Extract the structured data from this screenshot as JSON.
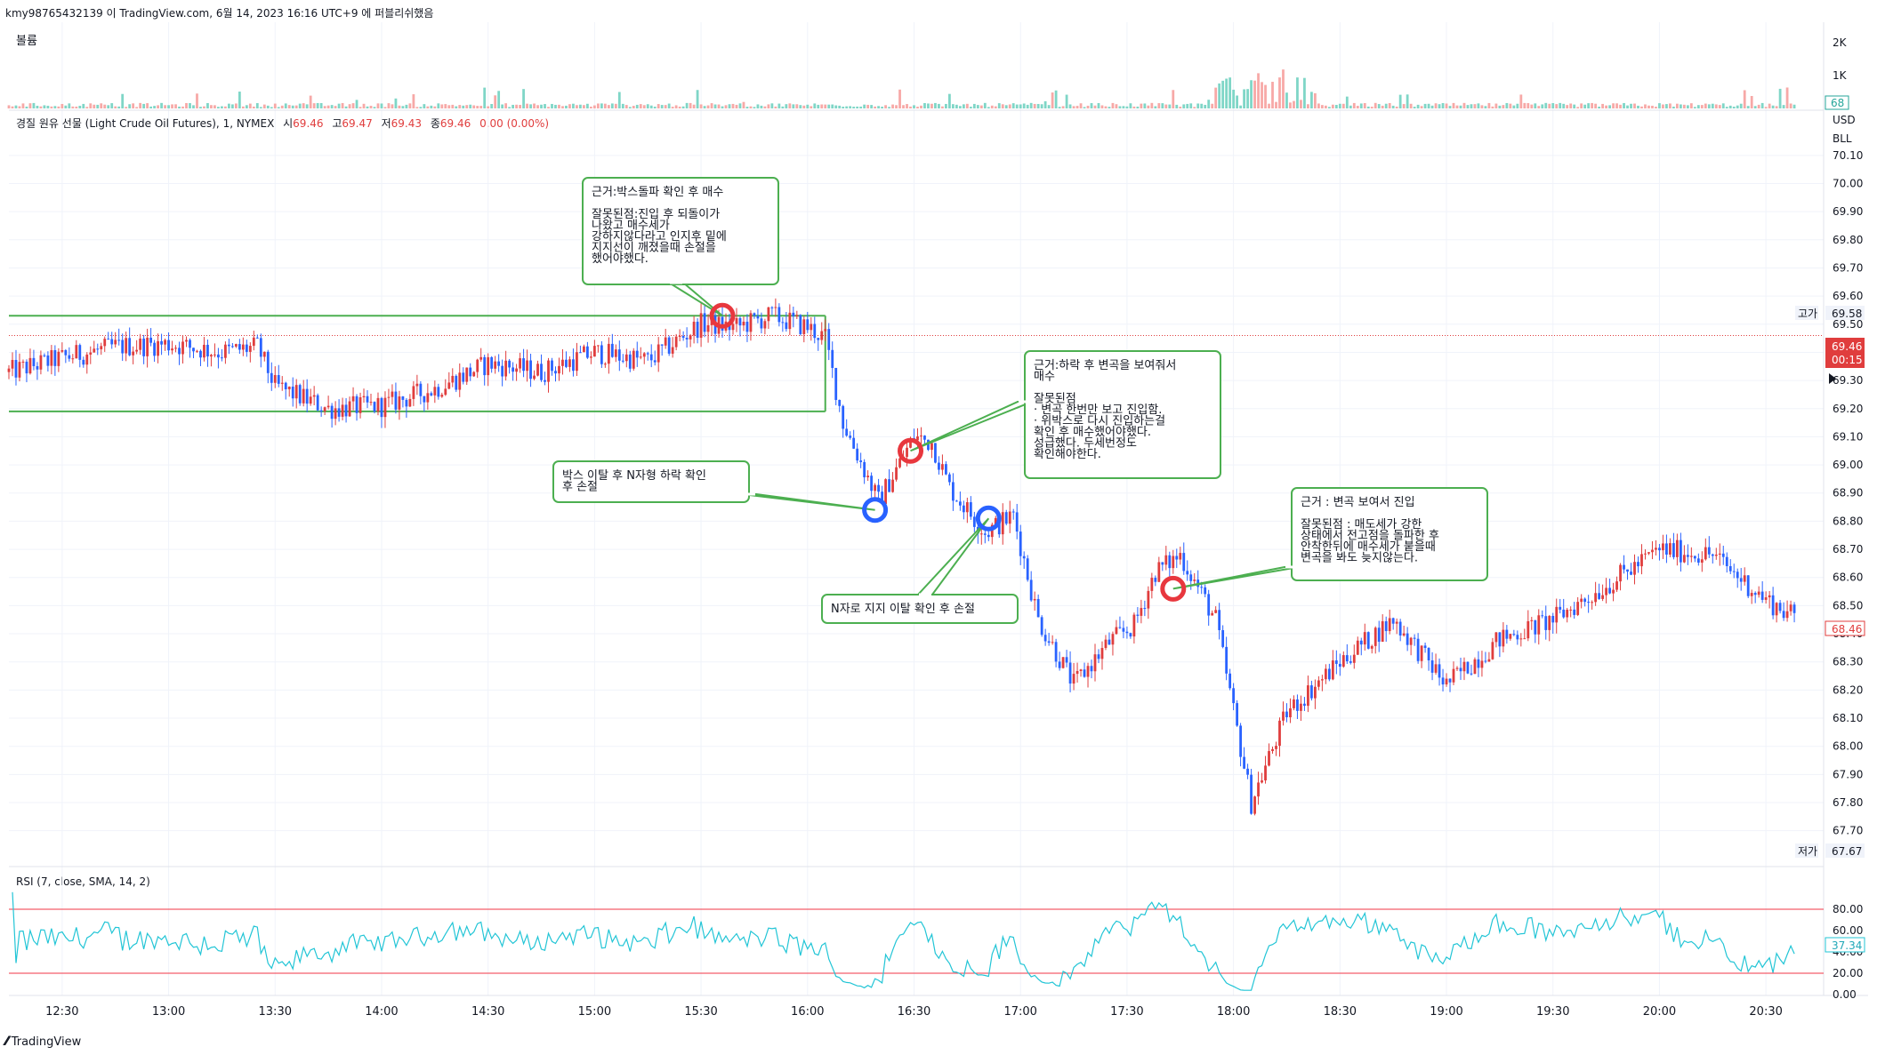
{
  "header": {
    "text": "kmy98765432139 이 TradingView.com, 6월 14, 2023 16:16 UTC+9 에 퍼블리쉬했음"
  },
  "volume_pane": {
    "label": "볼륨",
    "ticks": [
      "2K",
      "1K"
    ],
    "last_value": "68"
  },
  "title_line": {
    "name": "경질 원유 선물 (Light Crude Oil Futures), 1, NYMEX",
    "o_label": "시",
    "o_value": "69.46",
    "h_label": "고",
    "h_value": "69.47",
    "l_label": "저",
    "l_value": "69.43",
    "c_label": "종",
    "c_value": "69.46",
    "change": "0.00 (0.00%)"
  },
  "price_axis": {
    "currency": "USD",
    "unit": "BLL",
    "ticks": [
      "70.10",
      "70.00",
      "69.90",
      "69.80",
      "69.70",
      "69.60",
      "69.50",
      "69.40",
      "69.30",
      "69.20",
      "69.10",
      "69.00",
      "68.90",
      "68.80",
      "68.70",
      "68.60",
      "68.50",
      "68.40",
      "68.30",
      "68.20",
      "68.10",
      "68.00",
      "67.90",
      "67.80",
      "67.70"
    ],
    "high_label": "고가",
    "high_value": "69.58",
    "low_label": "저가",
    "low_value": "67.67",
    "last_price": "69.46",
    "countdown": "00:15",
    "secondary_price": "68.46"
  },
  "rsi_pane": {
    "label": "RSI (7, close, SMA, 14, 2)",
    "ticks": [
      "80.00",
      "60.00",
      "40.00",
      "20.00",
      "0.00"
    ],
    "value": "37.34"
  },
  "time_axis": {
    "ticks": [
      "12:30",
      "13:00",
      "13:30",
      "14:00",
      "14:30",
      "15:00",
      "15:30",
      "16:00",
      "16:30",
      "17:00",
      "17:30",
      "18:00",
      "18:30",
      "19:00",
      "19:30",
      "20:00",
      "20:30"
    ]
  },
  "annotations": [
    {
      "lines": [
        "근거:박스돌파 확인 후 매수",
        "",
        "잘못된점:진입 후 되돌이가",
        "나왔고 매수세가",
        "강하지않다라고 인지후 밑에",
        "지지선이 깨졌을때 손절을",
        "했어야했다."
      ]
    },
    {
      "lines": [
        "박스 이탈 후 N자형 하락 확인",
        "후 손절"
      ]
    },
    {
      "lines": [
        "근거:하락 후 변곡을 보여줘서",
        "매수",
        "",
        "잘못된점",
        "· 변곡 한번만 보고 진입함.",
        "· 위박스로 다시 진입하는걸",
        "확인 후 매수했어야했다.",
        "성급했다. 두세번정도",
        "확인해야한다."
      ]
    },
    {
      "lines": [
        "N자로 지지 이탈 확인 후 손절"
      ]
    },
    {
      "lines": [
        "근거 : 변곡 보여서 진입",
        "",
        "잘못된점 : 매도세가 강한",
        "상태에서 전고점을 돌파한 후",
        "안착한뒤에 매수세가 붙을때",
        "변곡을 봐도 늦지않는다."
      ]
    }
  ],
  "footer": {
    "brand": "TradingView"
  },
  "chart_data": {
    "type": "candlestick",
    "symbol": "경질 원유 선물 (Light Crude Oil Futures), 1, NYMEX",
    "interval": "1",
    "x_range": [
      "12:15",
      "20:45"
    ],
    "ylim": [
      67.62,
      70.21
    ],
    "price_path": [
      [
        "12:15",
        69.33
      ],
      [
        "12:30",
        69.38
      ],
      [
        "12:45",
        69.42
      ],
      [
        "13:00",
        69.43
      ],
      [
        "13:15",
        69.4
      ],
      [
        "13:25",
        69.42
      ],
      [
        "13:30",
        69.28
      ],
      [
        "13:45",
        69.2
      ],
      [
        "14:00",
        69.21
      ],
      [
        "14:15",
        69.27
      ],
      [
        "14:30",
        69.36
      ],
      [
        "14:45",
        69.33
      ],
      [
        "15:00",
        69.4
      ],
      [
        "15:15",
        69.37
      ],
      [
        "15:30",
        69.5
      ],
      [
        "15:40",
        69.49
      ],
      [
        "15:50",
        69.53
      ],
      [
        "16:00",
        69.49
      ],
      [
        "16:05",
        69.45
      ],
      [
        "16:10",
        69.15
      ],
      [
        "16:20",
        68.87
      ],
      [
        "16:30",
        69.1
      ],
      [
        "16:35",
        69.08
      ],
      [
        "16:40",
        68.92
      ],
      [
        "16:50",
        68.76
      ],
      [
        "16:58",
        68.82
      ],
      [
        "17:05",
        68.45
      ],
      [
        "17:15",
        68.22
      ],
      [
        "17:25",
        68.37
      ],
      [
        "17:32",
        68.43
      ],
      [
        "17:38",
        68.62
      ],
      [
        "17:45",
        68.68
      ],
      [
        "17:55",
        68.45
      ],
      [
        "18:05",
        67.8
      ],
      [
        "18:15",
        68.12
      ],
      [
        "18:30",
        68.3
      ],
      [
        "18:45",
        68.45
      ],
      [
        "19:00",
        68.22
      ],
      [
        "19:15",
        68.38
      ],
      [
        "19:30",
        68.45
      ],
      [
        "19:45",
        68.57
      ],
      [
        "20:00",
        68.7
      ],
      [
        "20:15",
        68.68
      ],
      [
        "20:30",
        68.52
      ],
      [
        "20:38",
        68.46
      ]
    ],
    "horizontal_lines": [
      69.46
    ],
    "box": {
      "from": "12:15",
      "to": "16:05",
      "top": 69.53,
      "bottom": 69.19
    },
    "markers": [
      {
        "time": "15:36",
        "price": 69.53,
        "type": "entry",
        "color": "#e8373e"
      },
      {
        "time": "16:19",
        "price": 68.84,
        "type": "exit",
        "color": "#2962ff"
      },
      {
        "time": "16:29",
        "price": 69.05,
        "type": "entry",
        "color": "#e8373e"
      },
      {
        "time": "16:51",
        "price": 68.81,
        "type": "exit",
        "color": "#2962ff"
      },
      {
        "time": "17:43",
        "price": 68.56,
        "type": "entry",
        "color": "#e8373e"
      }
    ],
    "rsi": {
      "period": 7,
      "upper_band": 80,
      "lower_band": 20,
      "last": 37.34
    },
    "colors": {
      "up": "#089981",
      "down": "#f23645",
      "candle_up": "#e03d3d",
      "candle_down": "#2962ff",
      "rsi_line": "#22c5d6",
      "box_line": "#4caf50"
    }
  }
}
